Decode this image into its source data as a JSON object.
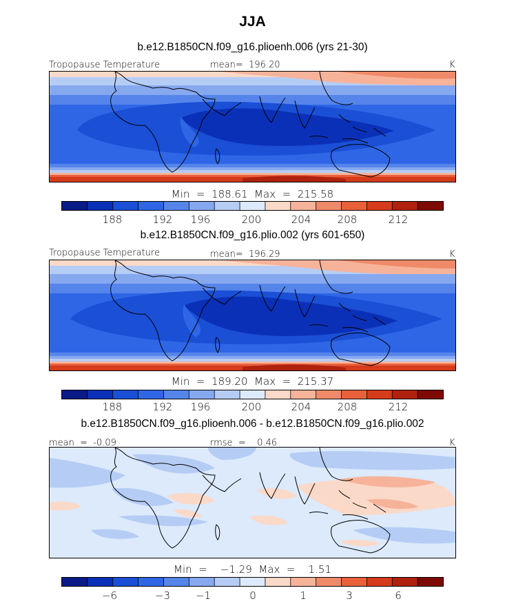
{
  "title": "JJA",
  "colors": {
    "palette": [
      "#0a1a86",
      "#0b30b8",
      "#1a4fd6",
      "#2f66e6",
      "#5585eb",
      "#86a8ef",
      "#b5cdf5",
      "#dceafb",
      "#fbd9c8",
      "#f6b39a",
      "#ef8a68",
      "#e8613b",
      "#d63b1b",
      "#b0210e",
      "#7e0a05"
    ],
    "coastline": "#000000"
  },
  "panels": [
    {
      "title": "b.e12.B1850CN.f09_g16.plioenh.006 (yrs 21-30)",
      "left_label": "Tropopause Temperature",
      "center_label": "mean=  196.20",
      "units": "K",
      "minmax": "Min  =  188.61  Max  =  215.58",
      "colorbar_ticks": [
        "188",
        "192",
        "196",
        "200",
        "204",
        "208",
        "212"
      ]
    },
    {
      "title": "b.e12.B1850CN.f09_g16.plio.002 (yrs 601-650)",
      "left_label": "Tropopause Temperature",
      "center_label": "mean=  196.29",
      "units": "K",
      "minmax": "Min  =  189.20  Max  =  215.37",
      "colorbar_ticks": [
        "188",
        "192",
        "196",
        "200",
        "204",
        "208",
        "212"
      ]
    },
    {
      "title": "b.e12.B1850CN.f09_g16.plioenh.006 - b.e12.B1850CN.f09_g16.plio.002",
      "left_label": "mean  =  -0.09",
      "center_label": "rmse  =    0.46",
      "units": "K",
      "minmax": "Min  =    −1.29  Max  =    1.51",
      "colorbar_ticks": [
        "−6",
        "−3",
        "−1",
        "0",
        "1",
        "3",
        "6"
      ]
    }
  ],
  "chart_data": [
    {
      "type": "heatmap",
      "title": "b.e12.B1850CN.f09_g16.plioenh.006 (yrs 21-30)",
      "variable": "Tropopause Temperature",
      "units": "K",
      "mean": 196.2,
      "min": 188.61,
      "max": 215.58,
      "colorbar_ticks": [
        188,
        192,
        196,
        200,
        204,
        208,
        212
      ],
      "levels": [
        186,
        188,
        190,
        192,
        194,
        196,
        198,
        200,
        202,
        204,
        206,
        208,
        210,
        212,
        214
      ],
      "lon_range": [
        -30,
        180
      ],
      "lat_range": [
        -50,
        50
      ],
      "lat_profile": [
        {
          "lat": 50,
          "value": 205
        },
        {
          "lat": 40,
          "value": 201
        },
        {
          "lat": 30,
          "value": 195
        },
        {
          "lat": 20,
          "value": 191
        },
        {
          "lat": 10,
          "value": 190
        },
        {
          "lat": 0,
          "value": 190
        },
        {
          "lat": -10,
          "value": 191
        },
        {
          "lat": -20,
          "value": 195
        },
        {
          "lat": -30,
          "value": 204
        },
        {
          "lat": -40,
          "value": 210
        },
        {
          "lat": -50,
          "value": 214
        }
      ]
    },
    {
      "type": "heatmap",
      "title": "b.e12.B1850CN.f09_g16.plio.002 (yrs 601-650)",
      "variable": "Tropopause Temperature",
      "units": "K",
      "mean": 196.29,
      "min": 189.2,
      "max": 215.37,
      "colorbar_ticks": [
        188,
        192,
        196,
        200,
        204,
        208,
        212
      ],
      "levels": [
        186,
        188,
        190,
        192,
        194,
        196,
        198,
        200,
        202,
        204,
        206,
        208,
        210,
        212,
        214
      ],
      "lon_range": [
        -30,
        180
      ],
      "lat_range": [
        -50,
        50
      ],
      "lat_profile": [
        {
          "lat": 50,
          "value": 205
        },
        {
          "lat": 40,
          "value": 201
        },
        {
          "lat": 30,
          "value": 195
        },
        {
          "lat": 20,
          "value": 191
        },
        {
          "lat": 10,
          "value": 190
        },
        {
          "lat": 0,
          "value": 190
        },
        {
          "lat": -10,
          "value": 191
        },
        {
          "lat": -20,
          "value": 195
        },
        {
          "lat": -30,
          "value": 204
        },
        {
          "lat": -40,
          "value": 210
        },
        {
          "lat": -50,
          "value": 214
        }
      ]
    },
    {
      "type": "heatmap",
      "title": "b.e12.B1850CN.f09_g16.plioenh.006 - b.e12.B1850CN.f09_g16.plio.002",
      "units": "K",
      "mean": -0.09,
      "rmse": 0.46,
      "min": -1.29,
      "max": 1.51,
      "colorbar_ticks": [
        -6,
        -3,
        -1,
        0,
        1,
        3,
        6
      ],
      "lon_range": [
        -30,
        180
      ],
      "lat_range": [
        -50,
        50
      ]
    }
  ]
}
